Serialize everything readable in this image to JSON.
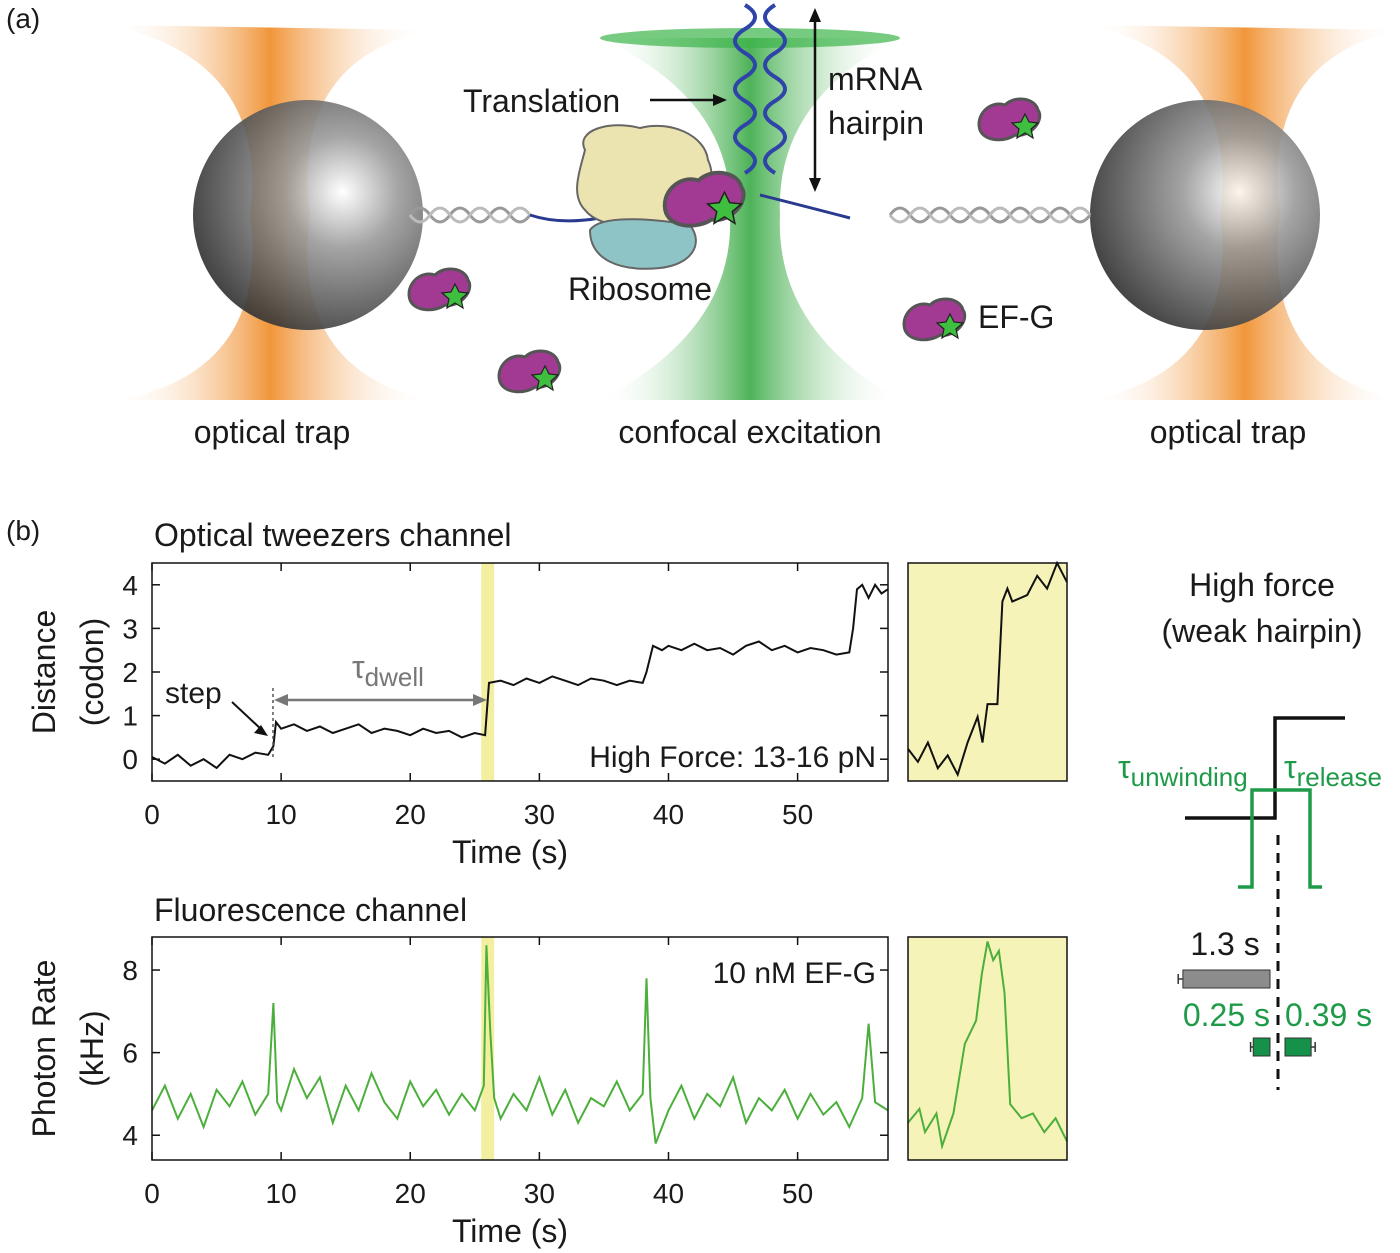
{
  "panel_a": {
    "label": "(a)",
    "translation": "Translation",
    "mrna": "mRNA",
    "hairpin": "hairpin",
    "ribosome": "Ribosome",
    "efg": "EF-G",
    "captions": [
      "optical trap",
      "confocal excitation",
      "optical trap"
    ]
  },
  "panel_b": {
    "label": "(b)"
  },
  "panel_c": {
    "title": [
      "High force",
      "(weak hairpin)"
    ],
    "tau_unwinding": {
      "symbol": "τ",
      "sub": "unwinding"
    },
    "tau_release": {
      "symbol": "τ",
      "sub": "release"
    }
  },
  "chart_data": [
    {
      "type": "line",
      "title": "Optical tweezers channel",
      "xlabel": "Time (s)",
      "ylabel": [
        "Distance",
        "(codon)"
      ],
      "annotation": "High Force: 13-16 pN",
      "step_label": "step",
      "dwell_label": {
        "symbol": "τ",
        "sub": "dwell"
      },
      "xlim": [
        0,
        57
      ],
      "ylim": [
        -0.5,
        4.5
      ],
      "xticks": [
        0,
        10,
        20,
        30,
        40,
        50
      ],
      "yticks": [
        0,
        1,
        2,
        3,
        4
      ],
      "highlight_x": [
        25.5,
        26.5
      ],
      "color": "#111111",
      "x": [
        0,
        1,
        2,
        3,
        4,
        5,
        6,
        7,
        8,
        9,
        9.4,
        9.6,
        10,
        11,
        12,
        13,
        14,
        15,
        16,
        17,
        18,
        19,
        20,
        21,
        22,
        23,
        24,
        25,
        25.8,
        26.1,
        27,
        28,
        29,
        30,
        31,
        32,
        33,
        34,
        35,
        36,
        37,
        38,
        38.3,
        38.8,
        39.5,
        40,
        41,
        42,
        43,
        44,
        45,
        46,
        47,
        48,
        49,
        50,
        51,
        52,
        53,
        54,
        54.3,
        54.6,
        55,
        55.5,
        56,
        56.5,
        57
      ],
      "values": [
        0.05,
        -0.1,
        0.1,
        -0.15,
        0.0,
        -0.2,
        0.1,
        0.0,
        0.15,
        0.1,
        0.3,
        0.85,
        0.7,
        0.8,
        0.65,
        0.75,
        0.6,
        0.7,
        0.8,
        0.6,
        0.7,
        0.65,
        0.55,
        0.7,
        0.6,
        0.65,
        0.5,
        0.6,
        0.55,
        1.75,
        1.8,
        1.7,
        1.85,
        1.75,
        1.9,
        1.8,
        1.7,
        1.85,
        1.8,
        1.7,
        1.8,
        1.75,
        2.0,
        2.6,
        2.5,
        2.6,
        2.5,
        2.65,
        2.5,
        2.55,
        2.4,
        2.6,
        2.7,
        2.5,
        2.6,
        2.45,
        2.55,
        2.5,
        2.4,
        2.45,
        3.0,
        3.9,
        4.0,
        3.7,
        4.0,
        3.8,
        3.9
      ]
    },
    {
      "type": "line",
      "title": "Fluorescence channel",
      "xlabel": "Time (s)",
      "ylabel": [
        "Photon Rate",
        "(kHz)"
      ],
      "annotation": "10 nM EF-G",
      "xlim": [
        0,
        57
      ],
      "ylim": [
        3.4,
        8.8
      ],
      "xticks": [
        0,
        10,
        20,
        30,
        40,
        50
      ],
      "yticks": [
        4,
        6,
        8
      ],
      "highlight_x": [
        25.5,
        26.5
      ],
      "color": "#4caf3c",
      "x": [
        0,
        1,
        2,
        3,
        4,
        5,
        6,
        7,
        8,
        9,
        9.4,
        9.7,
        10,
        11,
        12,
        13,
        14,
        15,
        16,
        17,
        18,
        19,
        20,
        21,
        22,
        23,
        24,
        25,
        25.7,
        25.9,
        26.2,
        26.5,
        27,
        28,
        29,
        30,
        31,
        32,
        33,
        34,
        35,
        36,
        37,
        38,
        38.3,
        38.6,
        39,
        40,
        41,
        42,
        43,
        44,
        45,
        46,
        47,
        48,
        49,
        50,
        51,
        52,
        53,
        54,
        55,
        55.5,
        56,
        57
      ],
      "values": [
        4.6,
        5.2,
        4.4,
        5.0,
        4.2,
        5.1,
        4.7,
        5.3,
        4.5,
        5.0,
        7.2,
        4.8,
        4.6,
        5.6,
        4.9,
        5.4,
        4.3,
        5.2,
        4.6,
        5.5,
        4.8,
        4.4,
        5.3,
        4.7,
        5.1,
        4.5,
        5.0,
        4.6,
        5.2,
        8.6,
        6.5,
        4.9,
        4.4,
        5.0,
        4.6,
        5.4,
        4.5,
        5.1,
        4.3,
        4.9,
        4.7,
        5.3,
        4.6,
        5.0,
        7.8,
        4.9,
        3.8,
        4.6,
        5.2,
        4.4,
        5.0,
        4.7,
        5.4,
        4.3,
        4.9,
        4.6,
        5.1,
        4.4,
        5.0,
        4.5,
        4.8,
        4.2,
        4.9,
        6.7,
        4.8,
        4.6
      ]
    },
    {
      "type": "line",
      "xlim": [
        25,
        26.6
      ],
      "ylim": [
        0.4,
        2.1
      ],
      "color": "#111111",
      "x": [
        25,
        25.1,
        25.2,
        25.3,
        25.4,
        25.5,
        25.6,
        25.7,
        25.75,
        25.8,
        25.9,
        25.95,
        26.0,
        26.05,
        26.2,
        26.3,
        26.4,
        26.5,
        26.6
      ],
      "values": [
        0.65,
        0.55,
        0.7,
        0.5,
        0.6,
        0.45,
        0.7,
        0.9,
        0.7,
        1.0,
        1.0,
        1.8,
        1.9,
        1.8,
        1.85,
        2.0,
        1.9,
        2.1,
        1.95
      ]
    },
    {
      "type": "line",
      "xlim": [
        25.2,
        26.6
      ],
      "ylim": [
        4.0,
        8.8
      ],
      "color": "#4caf3c",
      "x": [
        25.2,
        25.3,
        25.35,
        25.45,
        25.5,
        25.6,
        25.7,
        25.8,
        25.85,
        25.9,
        25.95,
        26.0,
        26.05,
        26.1,
        26.2,
        26.3,
        26.4,
        26.5,
        26.6
      ],
      "values": [
        4.8,
        5.1,
        4.6,
        5.0,
        4.3,
        5.0,
        6.5,
        7.0,
        8.0,
        8.7,
        8.3,
        8.5,
        7.6,
        5.2,
        4.9,
        5.0,
        4.6,
        4.9,
        4.4
      ]
    },
    {
      "type": "bar",
      "values": [
        1.3,
        0.25,
        0.39
      ],
      "value_labels": [
        "1.3 s",
        "0.25 s",
        "0.39 s"
      ],
      "errors": [
        0.07,
        0.04,
        0.06
      ],
      "colors": [
        "#8c8c8c",
        "#16914a",
        "#16914a"
      ]
    }
  ]
}
